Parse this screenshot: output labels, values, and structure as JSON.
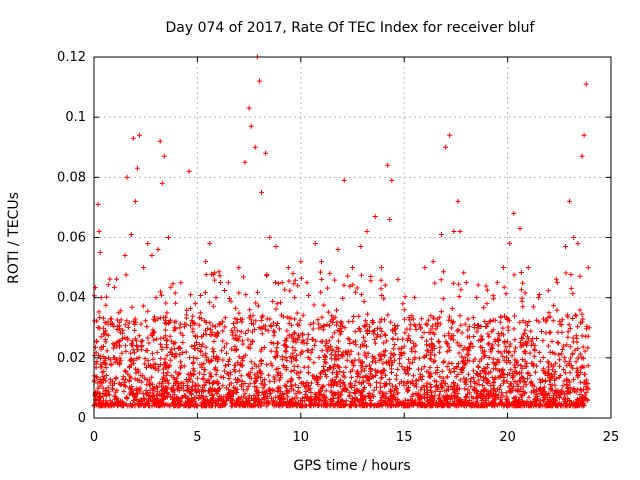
{
  "chart_data": {
    "type": "scatter",
    "title": "Day 074 of 2017, Rate Of TEC Index for receiver bluf",
    "xlabel": "GPS time / hours",
    "ylabel": "ROTI / TECUs",
    "xlim": [
      0,
      25
    ],
    "ylim": [
      0,
      0.12
    ],
    "x_ticks": [
      "0",
      "5",
      "10",
      "15",
      "20",
      "25"
    ],
    "y_ticks": [
      "0",
      "0.02",
      "0.04",
      "0.06",
      "0.08",
      "0.1",
      "0.12"
    ],
    "grid": true,
    "legend": "none",
    "marker": "+",
    "color": "#ff0000",
    "series": [
      {
        "points": [
          [
            0.0,
            0.012
          ],
          [
            0.1,
            0.018
          ],
          [
            0.2,
            0.071
          ],
          [
            0.25,
            0.062
          ],
          [
            0.3,
            0.055
          ],
          [
            0.35,
            0.04
          ],
          [
            0.5,
            0.028
          ],
          [
            0.7,
            0.02
          ],
          [
            0.9,
            0.031
          ],
          [
            1.2,
            0.035
          ],
          [
            1.5,
            0.054
          ],
          [
            1.6,
            0.08
          ],
          [
            1.8,
            0.061
          ],
          [
            1.9,
            0.093
          ],
          [
            2.0,
            0.072
          ],
          [
            2.1,
            0.083
          ],
          [
            2.2,
            0.094
          ],
          [
            2.4,
            0.05
          ],
          [
            2.6,
            0.058
          ],
          [
            2.8,
            0.054
          ],
          [
            3.0,
            0.04
          ],
          [
            3.1,
            0.056
          ],
          [
            3.2,
            0.092
          ],
          [
            3.3,
            0.078
          ],
          [
            3.4,
            0.087
          ],
          [
            3.6,
            0.06
          ],
          [
            3.9,
            0.03
          ],
          [
            4.2,
            0.045
          ],
          [
            4.6,
            0.082
          ],
          [
            4.9,
            0.038
          ],
          [
            5.2,
            0.033
          ],
          [
            5.4,
            0.052
          ],
          [
            5.6,
            0.058
          ],
          [
            5.9,
            0.04
          ],
          [
            6.2,
            0.032
          ],
          [
            6.5,
            0.045
          ],
          [
            6.8,
            0.03
          ],
          [
            7.0,
            0.05
          ],
          [
            7.3,
            0.085
          ],
          [
            7.5,
            0.103
          ],
          [
            7.6,
            0.097
          ],
          [
            7.8,
            0.09
          ],
          [
            7.9,
            0.12
          ],
          [
            8.0,
            0.112
          ],
          [
            8.1,
            0.075
          ],
          [
            8.3,
            0.088
          ],
          [
            8.5,
            0.06
          ],
          [
            8.8,
            0.057
          ],
          [
            9.1,
            0.045
          ],
          [
            9.4,
            0.05
          ],
          [
            9.7,
            0.04
          ],
          [
            10.0,
            0.052
          ],
          [
            10.3,
            0.045
          ],
          [
            10.7,
            0.058
          ],
          [
            11.0,
            0.052
          ],
          [
            11.4,
            0.048
          ],
          [
            11.8,
            0.056
          ],
          [
            12.1,
            0.079
          ],
          [
            12.5,
            0.05
          ],
          [
            12.9,
            0.057
          ],
          [
            13.2,
            0.062
          ],
          [
            13.6,
            0.067
          ],
          [
            13.9,
            0.05
          ],
          [
            14.2,
            0.084
          ],
          [
            14.3,
            0.066
          ],
          [
            14.4,
            0.079
          ],
          [
            14.7,
            0.046
          ],
          [
            15.0,
            0.036
          ],
          [
            15.5,
            0.04
          ],
          [
            16.0,
            0.05
          ],
          [
            16.4,
            0.052
          ],
          [
            16.8,
            0.061
          ],
          [
            17.0,
            0.09
          ],
          [
            17.2,
            0.094
          ],
          [
            17.4,
            0.062
          ],
          [
            17.6,
            0.072
          ],
          [
            17.7,
            0.062
          ],
          [
            18.0,
            0.045
          ],
          [
            18.5,
            0.04
          ],
          [
            19.0,
            0.038
          ],
          [
            19.5,
            0.045
          ],
          [
            19.8,
            0.05
          ],
          [
            20.1,
            0.058
          ],
          [
            20.3,
            0.068
          ],
          [
            20.6,
            0.063
          ],
          [
            21.0,
            0.05
          ],
          [
            21.5,
            0.04
          ],
          [
            22.0,
            0.035
          ],
          [
            22.4,
            0.045
          ],
          [
            22.8,
            0.057
          ],
          [
            23.0,
            0.072
          ],
          [
            23.2,
            0.06
          ],
          [
            23.4,
            0.058
          ],
          [
            23.6,
            0.087
          ],
          [
            23.7,
            0.094
          ],
          [
            23.8,
            0.111
          ],
          [
            23.9,
            0.05
          ],
          [
            23.95,
            0.03
          ]
        ]
      }
    ]
  }
}
